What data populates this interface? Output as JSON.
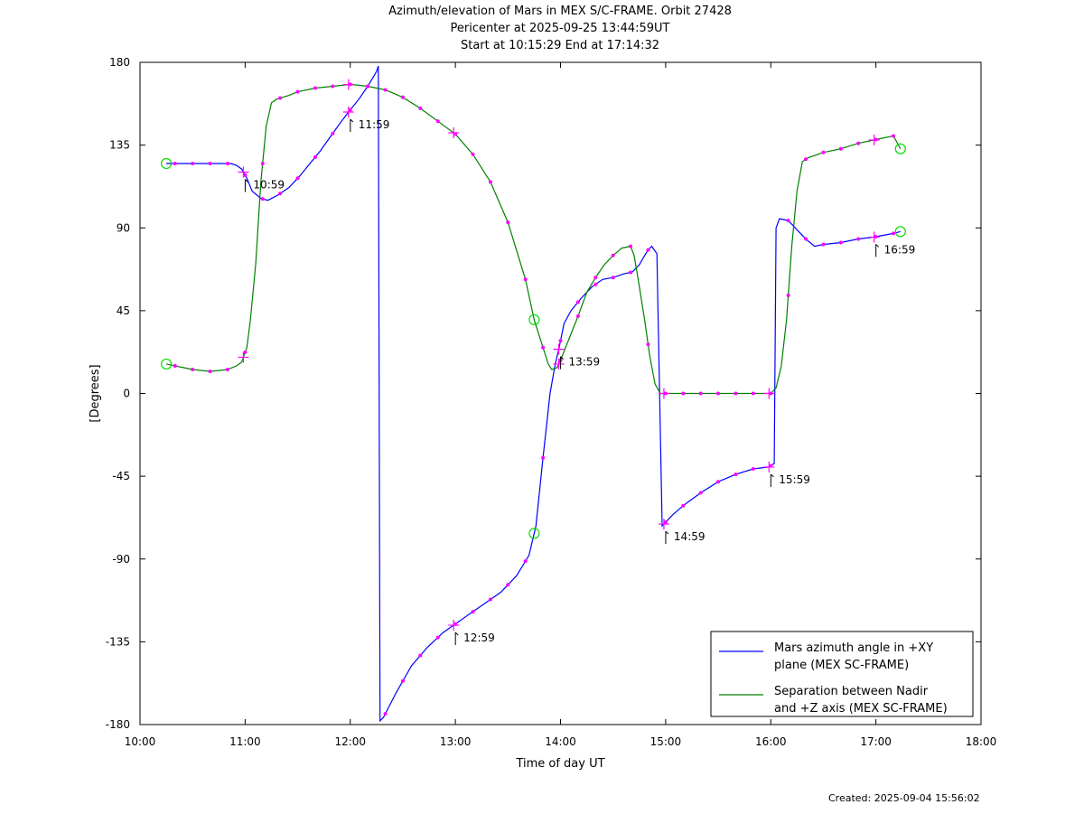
{
  "chart_data": {
    "type": "line",
    "title_lines": [
      "Azimuth/elevation of Mars in MEX S/C-FRAME.  Orbit 27428",
      "Pericenter at 2025-09-25 13:44:59UT",
      "Start at 10:15:29 End at 17:14:32"
    ],
    "xlabel": "Time of day UT",
    "ylabel": "[Degrees]",
    "x_range_hours": [
      10,
      18
    ],
    "ylim": [
      -180,
      180
    ],
    "x_ticks": [
      "10:00",
      "11:00",
      "12:00",
      "13:00",
      "14:00",
      "15:00",
      "16:00",
      "17:00",
      "18:00"
    ],
    "y_ticks": [
      "180",
      "135",
      "90",
      "45",
      "0",
      "-45",
      "-90",
      "-135",
      "-180"
    ],
    "grid": false,
    "legend_position": "bottom-right",
    "series": [
      {
        "name_lines": [
          "Mars azimuth angle in +XY",
          "plane (MEX SC-FRAME)"
        ],
        "color": "#0000ff",
        "x": [
          "10:15",
          "10:32",
          "10:42",
          "10:52",
          "10:55",
          "10:58",
          "11:01",
          "11:04",
          "11:09",
          "11:13",
          "11:19",
          "11:25",
          "11:31",
          "11:37",
          "11:43",
          "11:49",
          "11:55",
          "11:59",
          "12:05",
          "12:10",
          "12:15",
          "12:16",
          "12:17",
          "12:19",
          "12:26",
          "12:35",
          "12:44",
          "12:53",
          "12:59",
          "13:08",
          "13:17",
          "13:26",
          "13:35",
          "13:42",
          "13:46",
          "13:50",
          "13:54",
          "13:57",
          "13:59",
          "14:02",
          "14:06",
          "14:12",
          "14:18",
          "14:24",
          "14:30",
          "14:36",
          "14:41",
          "14:45",
          "14:48",
          "14:50",
          "14:52",
          "14:55",
          "14:58",
          "15:04",
          "15:10",
          "15:20",
          "15:30",
          "15:40",
          "15:50",
          "15:59",
          "16:02",
          "16:03",
          "16:05",
          "16:10",
          "16:15",
          "16:20",
          "16:25",
          "16:30",
          "16:40",
          "16:50",
          "16:59",
          "17:10",
          "17:14"
        ],
        "y": [
          125,
          125,
          125,
          125,
          124,
          122,
          117,
          110,
          106,
          105,
          108,
          112,
          118,
          125,
          132,
          140,
          148,
          153,
          160,
          167,
          175,
          178,
          -178,
          -176,
          -163,
          -148,
          -138,
          -130,
          -126,
          -120,
          -114,
          -108,
          -99,
          -88,
          -72,
          -35,
          0,
          16,
          24,
          38,
          45,
          52,
          58,
          62,
          63,
          65,
          66,
          70,
          75,
          78,
          80,
          76,
          -72,
          -66,
          -61,
          -54,
          -48,
          -44,
          -41,
          -40,
          -38,
          90,
          95,
          94,
          89,
          84,
          80,
          81,
          82,
          84,
          85,
          87,
          88
        ]
      },
      {
        "name_lines": [
          "Separation between Nadir",
          "and +Z axis (MEX SC-FRAME)"
        ],
        "color": "#008000",
        "x": [
          "10:15",
          "10:30",
          "10:40",
          "10:50",
          "10:55",
          "10:58",
          "11:01",
          "11:03",
          "11:06",
          "11:09",
          "11:12",
          "11:15",
          "11:18",
          "11:25",
          "11:30",
          "11:40",
          "11:50",
          "12:00",
          "12:10",
          "12:20",
          "12:30",
          "12:40",
          "12:50",
          "13:00",
          "13:10",
          "13:20",
          "13:30",
          "13:40",
          "13:45",
          "13:50",
          "13:53",
          "13:55",
          "13:58",
          "14:00",
          "14:05",
          "14:10",
          "14:15",
          "14:20",
          "14:25",
          "14:30",
          "14:35",
          "14:40",
          "14:42",
          "14:45",
          "14:48",
          "14:51",
          "14:54",
          "14:57",
          "15:00",
          "15:10",
          "15:30",
          "15:50",
          "16:00",
          "16:03",
          "16:06",
          "16:09",
          "16:12",
          "16:15",
          "16:18",
          "16:21",
          "16:24",
          "16:30",
          "16:40",
          "16:50",
          "17:00",
          "17:10",
          "17:14"
        ],
        "y": [
          16,
          13,
          12,
          13,
          15,
          17,
          25,
          40,
          70,
          115,
          145,
          158,
          160,
          162,
          164,
          166,
          167,
          168,
          167,
          165,
          161,
          155,
          148,
          141,
          130,
          115,
          93,
          62,
          40,
          25,
          16,
          13,
          14,
          18,
          30,
          42,
          55,
          63,
          70,
          75,
          79,
          80,
          75,
          58,
          40,
          20,
          5,
          0,
          0,
          0,
          0,
          0,
          0,
          3,
          15,
          40,
          80,
          110,
          126,
          128,
          129,
          131,
          133,
          136,
          138,
          140,
          133
        ]
      }
    ],
    "time_labels": [
      "10:59",
      "11:59",
      "12:59",
      "13:59",
      "14:59",
      "15:59",
      "16:59"
    ],
    "footer": "Created: 2025-09-04 15:56:02"
  }
}
